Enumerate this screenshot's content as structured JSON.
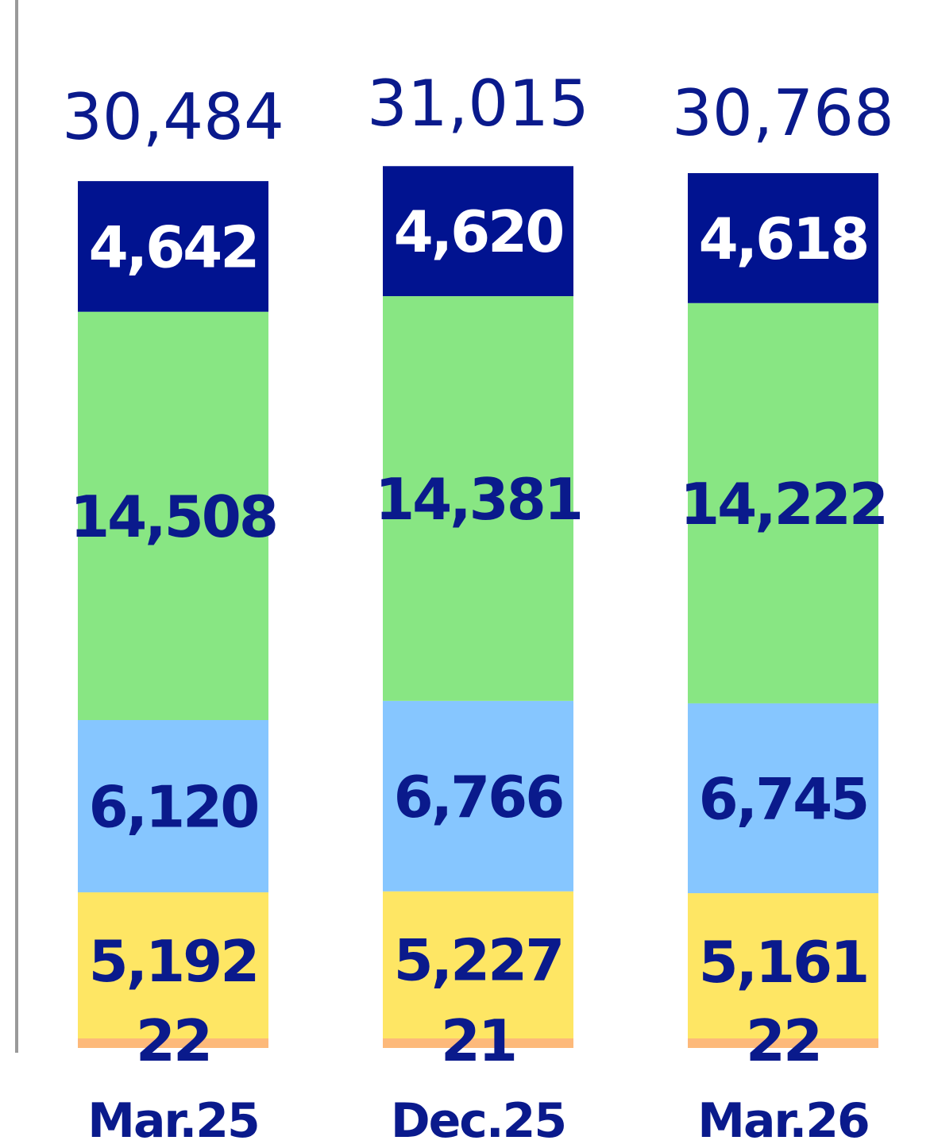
{
  "chart_data": {
    "type": "bar",
    "stacked": true,
    "categories": [
      "Mar.25",
      "Dec.25",
      "Mar.26"
    ],
    "totals": [
      "30,484",
      "31,015",
      "30,768"
    ],
    "series": [
      {
        "values": [
          22,
          21,
          22
        ],
        "labels": [
          "22",
          "21",
          "22"
        ],
        "color": "#FDB97A"
      },
      {
        "values": [
          5192,
          5227,
          5161
        ],
        "labels": [
          "5,192",
          "5,227",
          "5,161"
        ],
        "color": "#FEE664"
      },
      {
        "values": [
          6120,
          6766,
          6745
        ],
        "labels": [
          "6,120",
          "6,766",
          "6,745"
        ],
        "color": "#86C6FF"
      },
      {
        "values": [
          14508,
          14381,
          14222
        ],
        "labels": [
          "14,508",
          "14,381",
          "14,222"
        ],
        "color": "#88E683"
      },
      {
        "values": [
          4642,
          4620,
          4618
        ],
        "labels": [
          "4,642",
          "4,620",
          "4,618"
        ],
        "color": "#011390"
      }
    ],
    "colors": {
      "text": "#0A1A8C",
      "top_segment_text": "#FFFFFF",
      "axis": "#9A9A9A"
    },
    "grid": false,
    "legend": "none"
  }
}
